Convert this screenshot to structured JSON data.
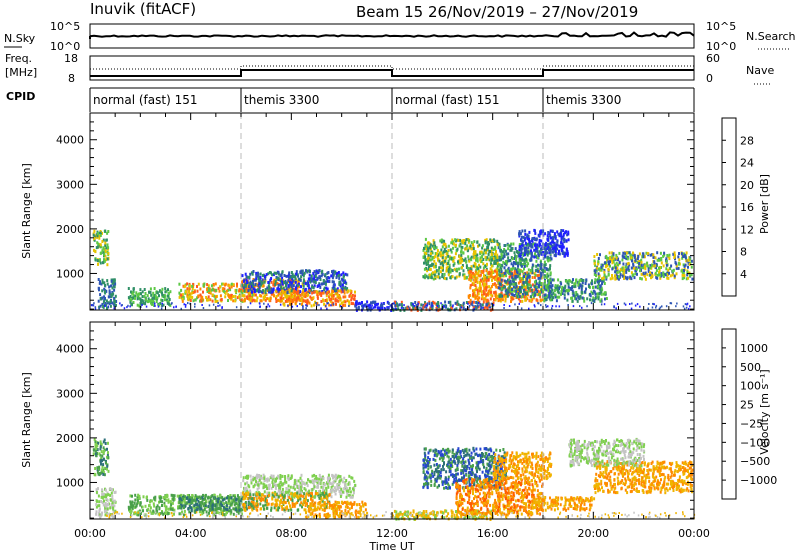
{
  "header": {
    "station": "Inuvik (fitACF)",
    "beam_date": "Beam 15  26/Nov/2019 – 27/Nov/2019"
  },
  "strip_panels": {
    "nsky_label": "N.Sky",
    "nsky_ticks": [
      "10^5",
      "10^0"
    ],
    "nsearch_label": "N.Search",
    "nsearch_ticks": [
      "10^5",
      "10^0"
    ],
    "freq_label_1": "Freq.",
    "freq_label_2": "[MHz]",
    "freq_ticks": [
      "18",
      "8"
    ],
    "nave_label": "Nave",
    "nave_ticks": [
      "60",
      "0"
    ],
    "cpid_label": "CPID",
    "cpid_segments": [
      {
        "label": "normal (fast) 151",
        "start_h": 0,
        "end_h": 6
      },
      {
        "label": "themis 3300",
        "start_h": 6,
        "end_h": 12
      },
      {
        "label": "normal (fast) 151",
        "start_h": 12,
        "end_h": 18
      },
      {
        "label": "themis 3300",
        "start_h": 18,
        "end_h": 24
      }
    ]
  },
  "x_axis": {
    "label": "Time UT",
    "ticks": [
      "00:00",
      "04:00",
      "08:00",
      "12:00",
      "16:00",
      "20:00",
      "00:00"
    ],
    "range_hours": [
      0,
      24
    ]
  },
  "colorbars": {
    "power": {
      "label": "Power [dB]",
      "ticks": [
        "28",
        "24",
        "20",
        "16",
        "12",
        "8",
        "4"
      ],
      "colors": [
        "#1f1fff",
        "#2d55b4",
        "#2f8f66",
        "#5cc845",
        "#e8c400",
        "#ff8800",
        "#ff5a1f",
        "#ff1a1a"
      ]
    },
    "velocity": {
      "label": "Velocity [m s⁻¹]",
      "ticks": [
        "1000",
        "500",
        "100",
        "25",
        "−25",
        "−100",
        "−500",
        "−1000"
      ],
      "colors": [
        "#2646d0",
        "#2d6f7a",
        "#49a04a",
        "#7fd04f",
        "#c4c4c4",
        "#f0b400",
        "#ff8a00",
        "#ff5a00",
        "#ff1e00"
      ]
    }
  },
  "chart_data": [
    {
      "type": "heatmap",
      "title": "Power",
      "ylabel": "Slant Range [km]",
      "xlabel": "",
      "yticks": [
        "1000",
        "2000",
        "3000",
        "4000"
      ],
      "ylim": [
        180,
        4600
      ],
      "xlim": [
        0,
        24
      ],
      "vertical_guides_h": [
        6,
        12,
        18
      ],
      "regions": [
        {
          "t0": 0.1,
          "t1": 0.7,
          "r0": 1200,
          "r1": 2000,
          "values": [
            12,
            16,
            20
          ]
        },
        {
          "t0": 0.3,
          "t1": 1.0,
          "r0": 250,
          "r1": 900,
          "values": [
            8,
            12
          ]
        },
        {
          "t0": 1.5,
          "t1": 3.2,
          "r0": 300,
          "r1": 700,
          "values": [
            12,
            16
          ]
        },
        {
          "t0": 3.5,
          "t1": 6.5,
          "r0": 400,
          "r1": 800,
          "values": [
            16,
            20,
            24,
            28
          ]
        },
        {
          "t0": 6.0,
          "t1": 8.5,
          "r0": 400,
          "r1": 900,
          "values": [
            24,
            28,
            20
          ]
        },
        {
          "t0": 6.0,
          "t1": 10.2,
          "r0": 600,
          "r1": 1100,
          "values": [
            8,
            4,
            12
          ]
        },
        {
          "t0": 7.5,
          "t1": 10.5,
          "r0": 300,
          "r1": 650,
          "values": [
            20,
            24,
            28
          ]
        },
        {
          "t0": 10.5,
          "t1": 12.0,
          "r0": 200,
          "r1": 400,
          "values": [
            4,
            8
          ]
        },
        {
          "t0": 12.0,
          "t1": 16.0,
          "r0": 200,
          "r1": 400,
          "values": [
            8,
            12,
            28
          ]
        },
        {
          "t0": 13.2,
          "t1": 16.2,
          "r0": 900,
          "r1": 1800,
          "values": [
            12,
            16,
            20
          ]
        },
        {
          "t0": 15.0,
          "t1": 18.0,
          "r0": 400,
          "r1": 1100,
          "values": [
            20,
            24,
            28
          ]
        },
        {
          "t0": 16.2,
          "t1": 18.3,
          "r0": 500,
          "r1": 1700,
          "values": [
            12,
            16,
            8
          ]
        },
        {
          "t0": 18.0,
          "t1": 20.5,
          "r0": 400,
          "r1": 900,
          "values": [
            8,
            12,
            16
          ]
        },
        {
          "t0": 20.0,
          "t1": 23.9,
          "r0": 900,
          "r1": 1500,
          "values": [
            16,
            20,
            8
          ]
        },
        {
          "t0": 17.0,
          "t1": 19.0,
          "r0": 1400,
          "r1": 2000,
          "values": [
            4,
            8
          ]
        }
      ]
    },
    {
      "type": "heatmap",
      "title": "Velocity",
      "ylabel": "Slant Range [km]",
      "xlabel": "Time UT",
      "yticks": [
        "1000",
        "2000",
        "3000",
        "4000"
      ],
      "ylim": [
        180,
        4600
      ],
      "xlim": [
        0,
        24
      ],
      "vertical_guides_h": [
        6,
        12,
        18
      ],
      "regions": [
        {
          "t0": 0.1,
          "t1": 0.7,
          "r0": 1200,
          "r1": 2000,
          "values": [
            100,
            500,
            25
          ]
        },
        {
          "t0": 0.2,
          "t1": 1.0,
          "r0": 250,
          "r1": 900,
          "values": [
            25,
            -25
          ]
        },
        {
          "t0": 1.5,
          "t1": 6.0,
          "r0": 300,
          "r1": 750,
          "values": [
            100,
            25
          ]
        },
        {
          "t0": 3.5,
          "t1": 6.5,
          "r0": 400,
          "r1": 700,
          "values": [
            100,
            500
          ]
        },
        {
          "t0": 6.0,
          "t1": 10.5,
          "r0": 700,
          "r1": 1200,
          "values": [
            25,
            -25
          ]
        },
        {
          "t0": 6.0,
          "t1": 9.5,
          "r0": 400,
          "r1": 800,
          "values": [
            -100,
            -500,
            100
          ]
        },
        {
          "t0": 8.5,
          "t1": 11.0,
          "r0": 250,
          "r1": 600,
          "values": [
            -100,
            -500
          ]
        },
        {
          "t0": 12.0,
          "t1": 16.0,
          "r0": 200,
          "r1": 400,
          "values": [
            -100,
            25
          ]
        },
        {
          "t0": 13.2,
          "t1": 16.5,
          "r0": 900,
          "r1": 1800,
          "values": [
            500,
            1000,
            100
          ]
        },
        {
          "t0": 14.5,
          "t1": 18.0,
          "r0": 300,
          "r1": 1100,
          "values": [
            -500,
            -100,
            -1000
          ]
        },
        {
          "t0": 16.0,
          "t1": 18.3,
          "r0": 1100,
          "r1": 1700,
          "values": [
            -100,
            -500
          ]
        },
        {
          "t0": 17.5,
          "t1": 20.0,
          "r0": 400,
          "r1": 700,
          "values": [
            -100,
            -500
          ]
        },
        {
          "t0": 20.0,
          "t1": 23.9,
          "r0": 800,
          "r1": 1500,
          "values": [
            -500,
            -100
          ]
        },
        {
          "t0": 19.0,
          "t1": 22.0,
          "r0": 1400,
          "r1": 2000,
          "values": [
            25,
            -25
          ]
        }
      ]
    }
  ]
}
